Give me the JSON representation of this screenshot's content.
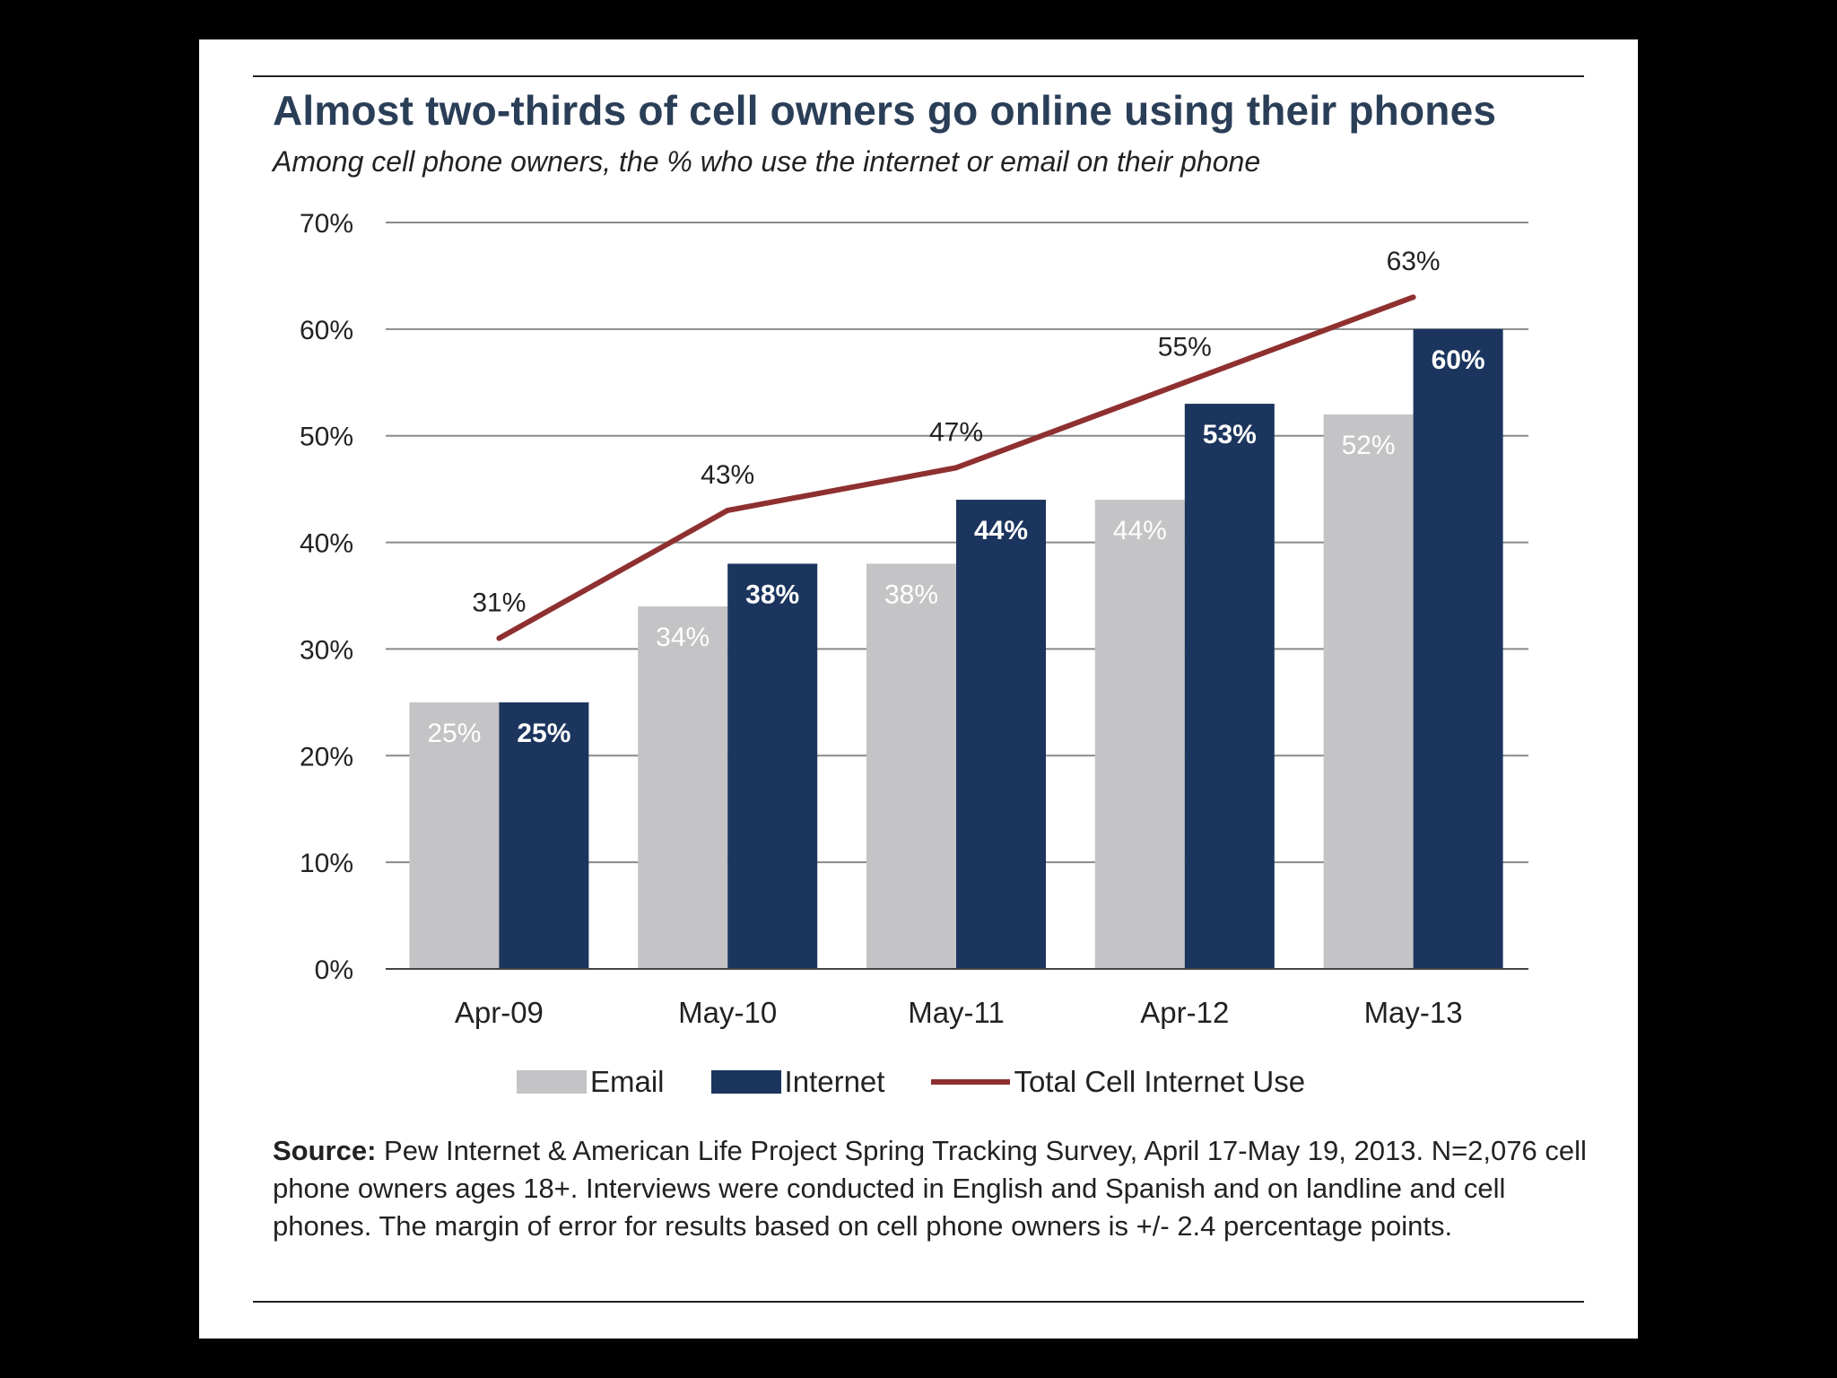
{
  "header": {
    "title": "Almost two-thirds of cell owners go online using their phones",
    "subtitle": "Among cell phone owners, the % who use the internet or email on their phone"
  },
  "chart_data": {
    "type": "bar",
    "title": "Almost two-thirds of cell owners go online using their phones",
    "subtitle": "Among cell phone owners, the % who use the internet or email on their phone",
    "xlabel": "",
    "ylabel": "",
    "ylim": [
      0,
      70
    ],
    "y_ticks": [
      0,
      10,
      20,
      30,
      40,
      50,
      60,
      70
    ],
    "y_tick_labels": [
      "0%",
      "10%",
      "20%",
      "30%",
      "40%",
      "50%",
      "60%",
      "70%"
    ],
    "grid": true,
    "legend_position": "bottom",
    "categories": [
      "Apr-09",
      "May-10",
      "May-11",
      "Apr-12",
      "May-13"
    ],
    "series": [
      {
        "name": "Email",
        "type": "bar",
        "color": "#c4c4c6",
        "label_color": "#ffffff",
        "values": [
          25,
          34,
          38,
          44,
          52
        ],
        "labels": [
          "25%",
          "34%",
          "38%",
          "44%",
          "52%"
        ]
      },
      {
        "name": "Internet",
        "type": "bar",
        "color": "#1b355e",
        "label_color": "#ffffff",
        "values": [
          25,
          38,
          44,
          53,
          60
        ],
        "labels": [
          "25%",
          "38%",
          "44%",
          "53%",
          "60%"
        ]
      },
      {
        "name": "Total Cell Internet Use",
        "type": "line",
        "color": "#8f3030",
        "label_color": "#222222",
        "values": [
          31,
          43,
          47,
          55,
          63
        ],
        "labels": [
          "31%",
          "43%",
          "47%",
          "55%",
          "63%"
        ]
      }
    ]
  },
  "source": {
    "label": "Source:",
    "text": " Pew Internet & American Life Project Spring Tracking Survey, April 17-May 19, 2013. N=2,076 cell phone owners ages 18+.  Interviews were conducted in English and Spanish and on landline and cell phones.  The margin of error for results based on cell phone owners is +/- 2.4 percentage points."
  },
  "colors": {
    "background": "#000000",
    "card": "#ffffff",
    "title": "#2a3e57",
    "grid": "#8a8a8a"
  }
}
